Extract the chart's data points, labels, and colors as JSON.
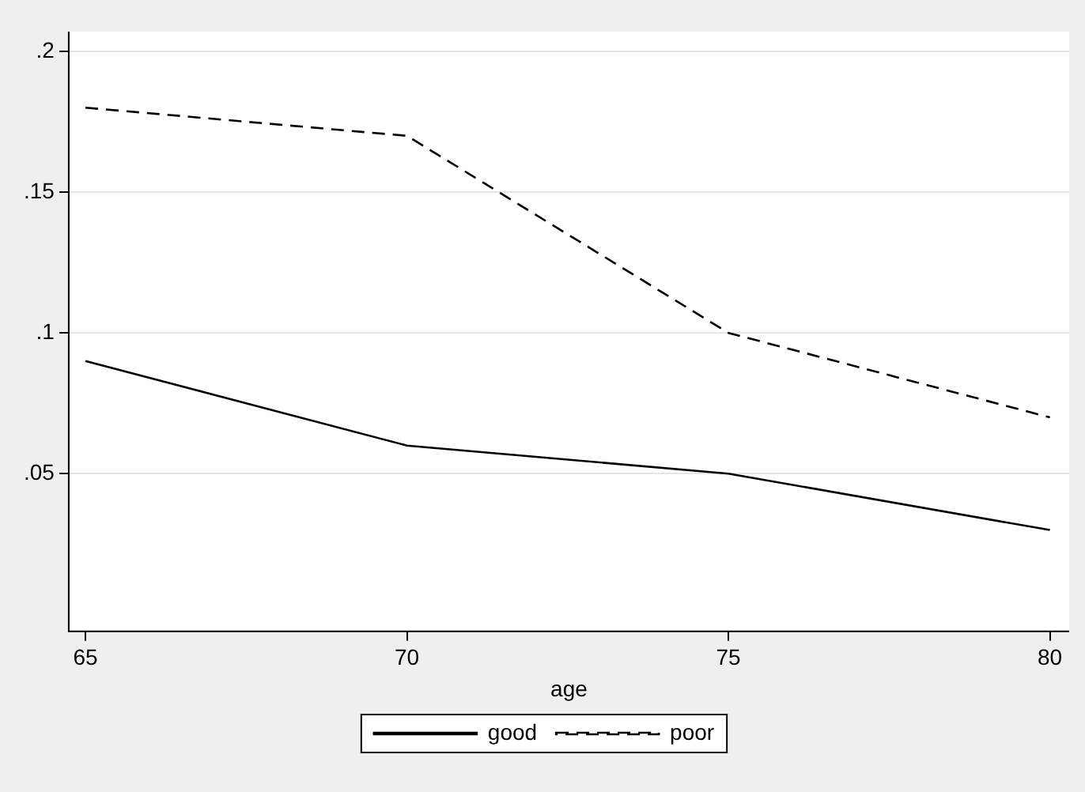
{
  "chart_data": {
    "type": "line",
    "xlabel": "age",
    "x": [
      65,
      70,
      75,
      80
    ],
    "series": [
      {
        "name": "good",
        "color": "#000000",
        "values": [
          0.09,
          0.06,
          0.05,
          0.03
        ],
        "line_style": "solid"
      },
      {
        "name": "poor",
        "color": "#000000",
        "values": [
          0.18,
          0.17,
          0.1,
          0.07
        ],
        "line_style": "dashed"
      }
    ],
    "xlim": [
      64.74,
      80.3
    ],
    "xticks": [
      65,
      70,
      75,
      80
    ],
    "ylim": [
      -0.006,
      0.207
    ],
    "yticks": [
      {
        "value": 0.05,
        "label": ".05"
      },
      {
        "value": 0.1,
        "label": ".1"
      },
      {
        "value": 0.15,
        "label": ".15"
      },
      {
        "value": 0.2,
        "label": ".2"
      }
    ],
    "grid": "y",
    "legend": "bottom",
    "marker": "none"
  }
}
